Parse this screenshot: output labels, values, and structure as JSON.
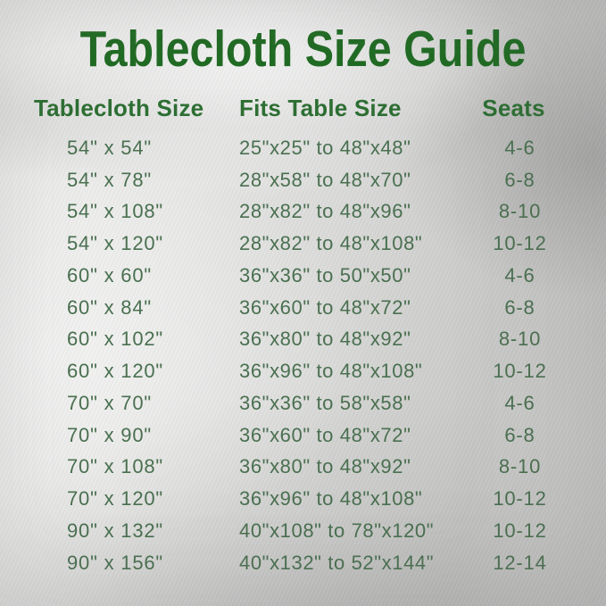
{
  "title": "Tablecloth Size Guide",
  "colors": {
    "title_green": "#1e6b21",
    "header_green": "#2d6f33",
    "body_green": "#4a7050",
    "background_silver": "#d9d9d8"
  },
  "chart_data": {
    "type": "table",
    "title": "Tablecloth Size Guide",
    "columns": [
      "Tablecloth Size",
      "Fits Table Size",
      "Seats"
    ],
    "rows": [
      [
        "54\" x 54\"",
        "25\"x25\" to 48\"x48\"",
        "4-6"
      ],
      [
        "54\" x 78\"",
        "28\"x58\" to 48\"x70\"",
        "6-8"
      ],
      [
        "54\" x 108\"",
        "28\"x82\" to 48\"x96\"",
        "8-10"
      ],
      [
        "54\" x 120\"",
        "28\"x82\" to 48\"x108\"",
        "10-12"
      ],
      [
        "60\" x 60\"",
        "36\"x36\" to 50\"x50\"",
        "4-6"
      ],
      [
        "60\" x 84\"",
        "36\"x60\" to 48\"x72\"",
        "6-8"
      ],
      [
        "60\" x 102\"",
        "36\"x80\" to 48\"x92\"",
        "8-10"
      ],
      [
        "60\" x 120\"",
        "36\"x96\" to 48\"x108\"",
        "10-12"
      ],
      [
        "70\" x 70\"",
        "36\"x36\" to 58\"x58\"",
        "4-6"
      ],
      [
        "70\" x 90\"",
        "36\"x60\" to 48\"x72\"",
        "6-8"
      ],
      [
        "70\" x 108\"",
        "36\"x80\" to 48\"x92\"",
        "8-10"
      ],
      [
        "70\" x 120\"",
        "36\"x96\" to 48\"x108\"",
        "10-12"
      ],
      [
        "90\" x 132\"",
        "40\"x108\" to 78\"x120\"",
        "10-12"
      ],
      [
        "90\" x 156\"",
        "40\"x132\" to 52\"x144\"",
        "12-14"
      ]
    ]
  }
}
